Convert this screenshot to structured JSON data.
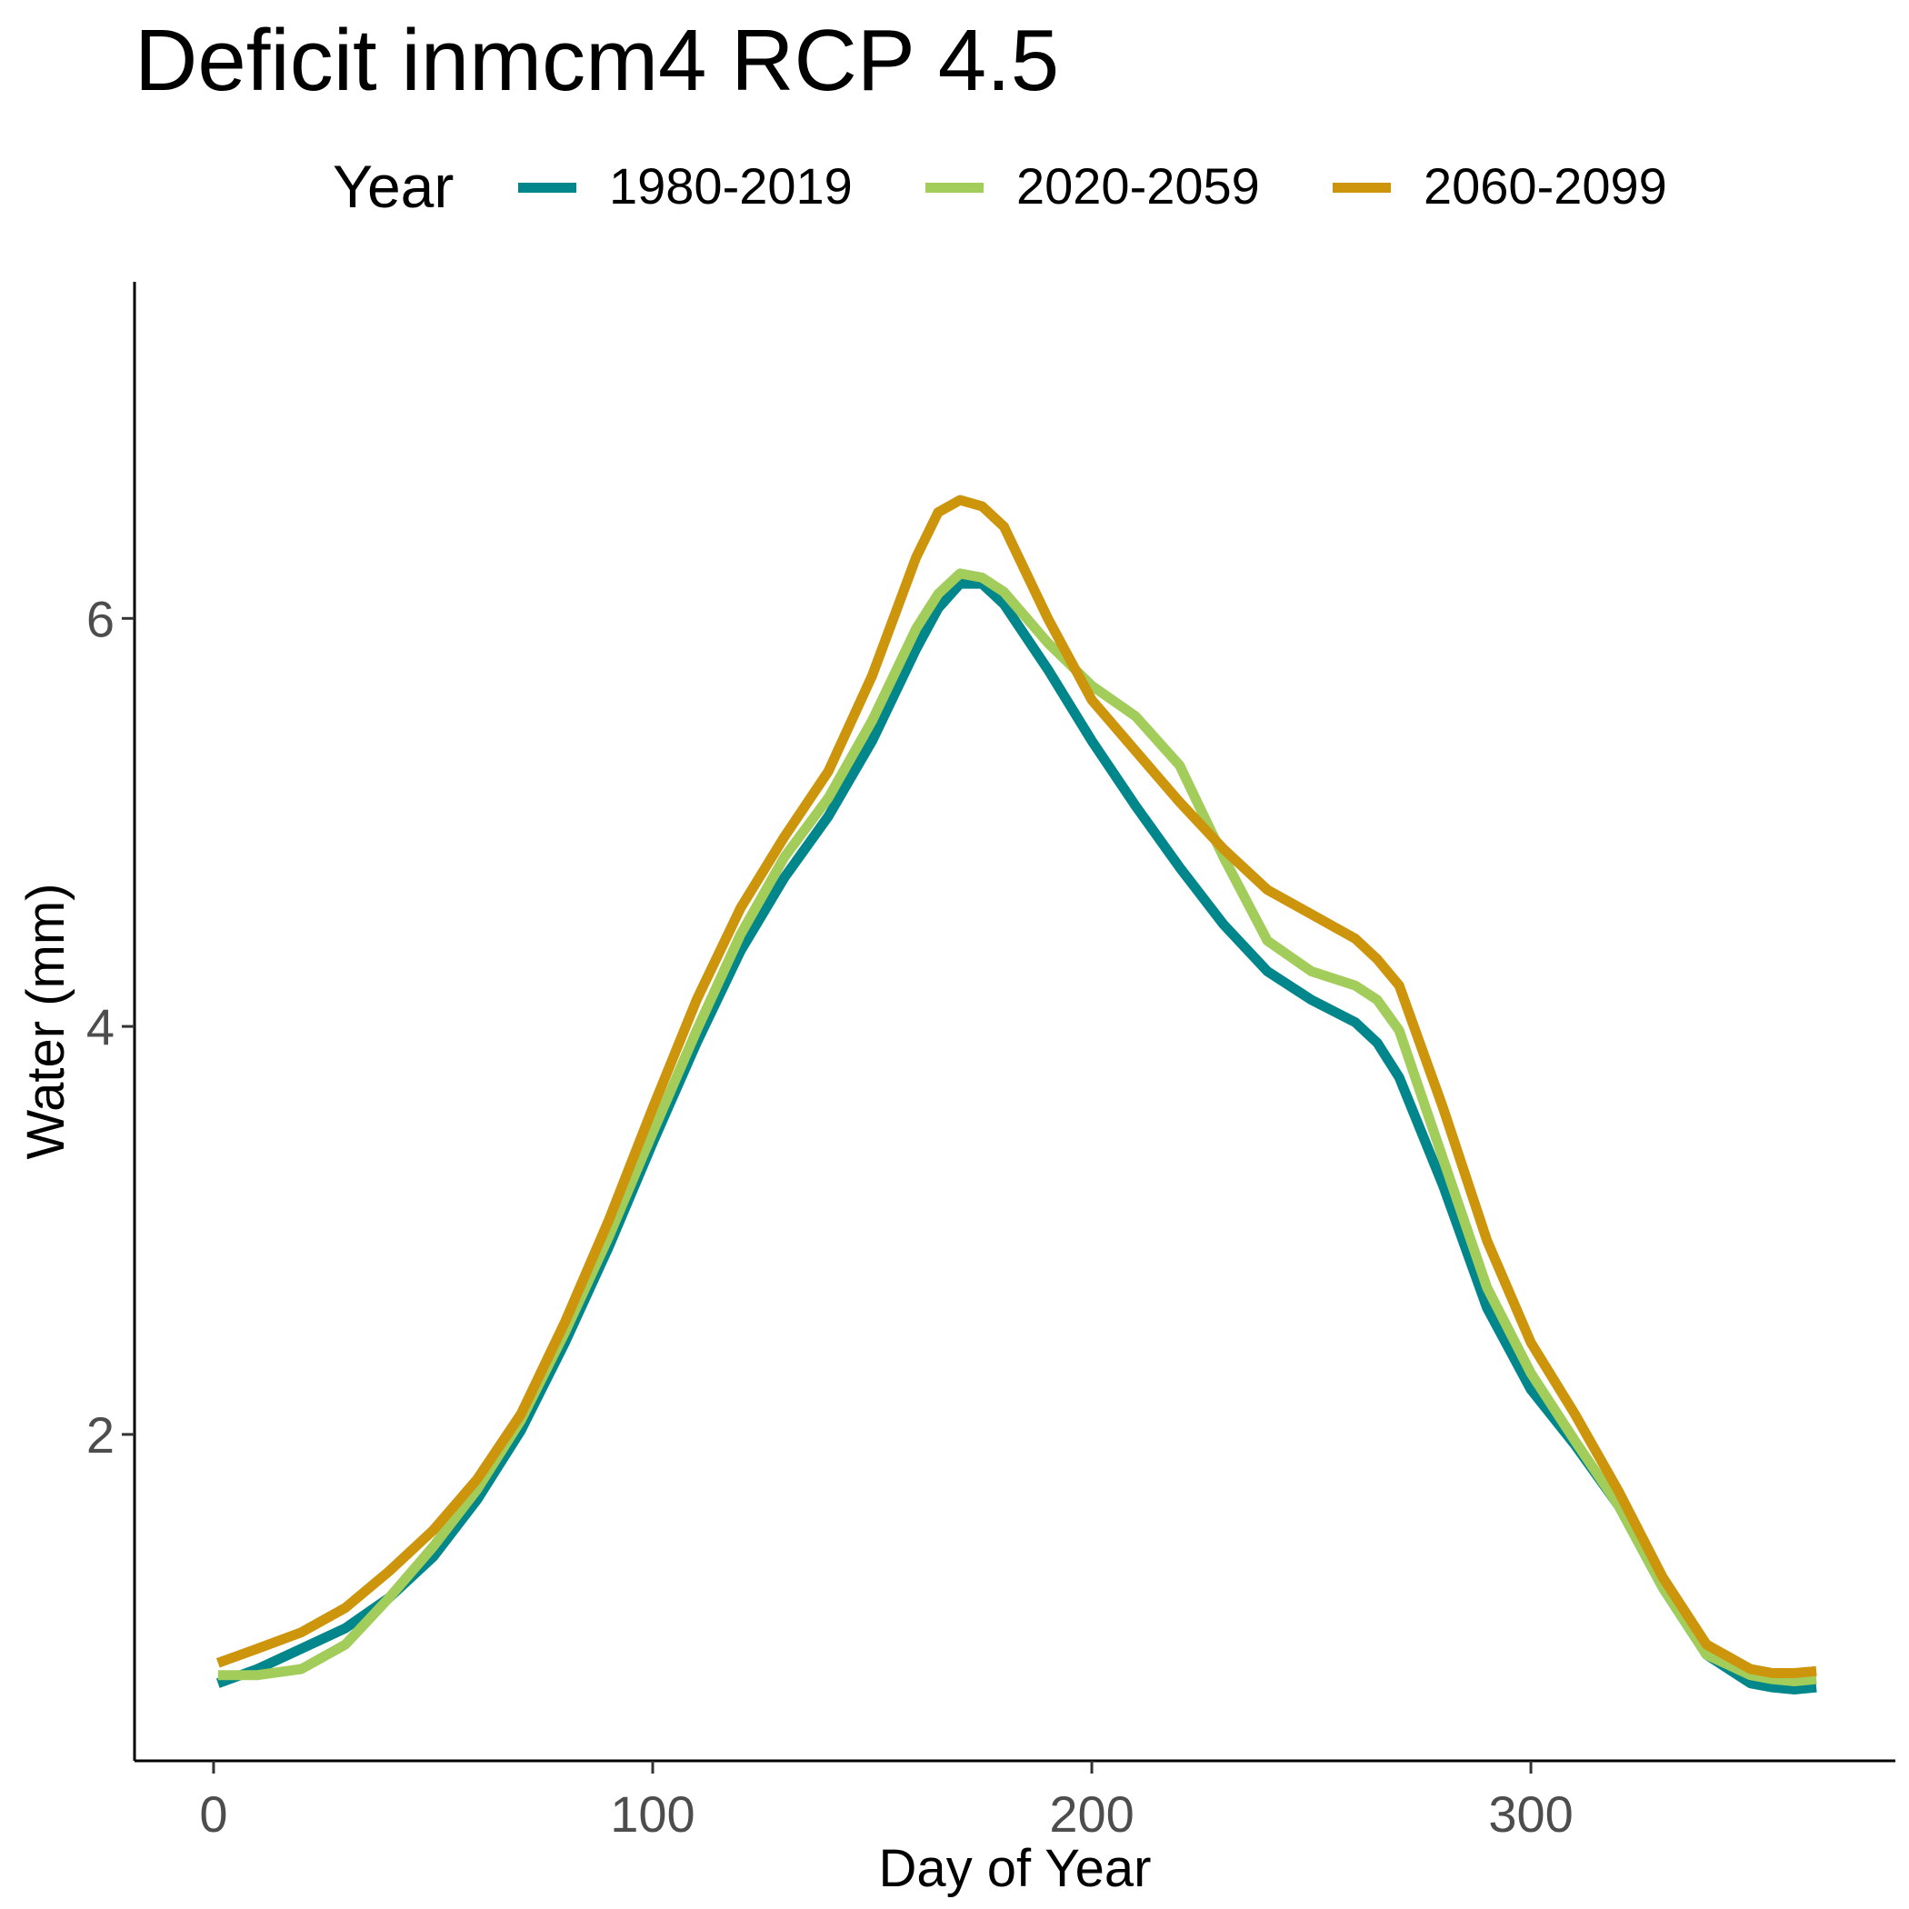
{
  "chart_data": {
    "type": "line",
    "title": "Deficit inmcm4 RCP 4.5",
    "xlabel": "Day of Year",
    "ylabel": "Water (mm)",
    "xlim": [
      -18,
      383
    ],
    "ylim": [
      0.4,
      7.65
    ],
    "xticks": [
      0,
      100,
      200,
      300
    ],
    "yticks": [
      2,
      4,
      6
    ],
    "grid": false,
    "legend": {
      "title": "Year",
      "position": "top"
    },
    "series": [
      {
        "name": "1980-2019",
        "color": "#00868B",
        "x": [
          1,
          10,
          20,
          30,
          40,
          50,
          60,
          70,
          80,
          90,
          100,
          110,
          120,
          130,
          140,
          150,
          160,
          165,
          170,
          175,
          180,
          190,
          200,
          210,
          220,
          230,
          240,
          250,
          260,
          265,
          270,
          280,
          290,
          300,
          310,
          320,
          330,
          340,
          350,
          355,
          360,
          365
        ],
        "y": [
          0.78,
          0.85,
          0.95,
          1.05,
          1.2,
          1.4,
          1.68,
          2.02,
          2.45,
          2.92,
          3.43,
          3.92,
          4.37,
          4.73,
          5.03,
          5.4,
          5.85,
          6.05,
          6.17,
          6.17,
          6.07,
          5.75,
          5.4,
          5.08,
          4.78,
          4.5,
          4.27,
          4.13,
          4.02,
          3.92,
          3.75,
          3.22,
          2.62,
          2.22,
          1.95,
          1.65,
          1.25,
          0.92,
          0.78,
          0.76,
          0.75,
          0.76
        ]
      },
      {
        "name": "2020-2059",
        "color": "#A2CD5A",
        "x": [
          1,
          10,
          20,
          30,
          40,
          50,
          60,
          70,
          80,
          90,
          100,
          110,
          120,
          130,
          140,
          150,
          160,
          165,
          170,
          175,
          180,
          190,
          200,
          210,
          220,
          230,
          240,
          250,
          260,
          265,
          270,
          280,
          290,
          300,
          310,
          320,
          330,
          340,
          350,
          355,
          360,
          365
        ],
        "y": [
          0.82,
          0.82,
          0.85,
          0.97,
          1.2,
          1.45,
          1.73,
          2.07,
          2.5,
          2.97,
          3.48,
          3.98,
          4.45,
          4.83,
          5.12,
          5.5,
          5.95,
          6.12,
          6.22,
          6.2,
          6.13,
          5.88,
          5.67,
          5.52,
          5.28,
          4.83,
          4.42,
          4.27,
          4.2,
          4.13,
          3.98,
          3.35,
          2.72,
          2.3,
          1.97,
          1.65,
          1.25,
          0.92,
          0.82,
          0.8,
          0.79,
          0.8
        ]
      },
      {
        "name": "2060-2099",
        "color": "#CD950C",
        "x": [
          1,
          10,
          20,
          30,
          40,
          50,
          60,
          70,
          80,
          90,
          100,
          110,
          120,
          130,
          140,
          150,
          160,
          165,
          170,
          175,
          180,
          190,
          200,
          210,
          220,
          230,
          240,
          250,
          260,
          265,
          270,
          280,
          290,
          300,
          310,
          320,
          330,
          340,
          350,
          355,
          360,
          365
        ],
        "y": [
          0.88,
          0.95,
          1.03,
          1.15,
          1.33,
          1.53,
          1.78,
          2.1,
          2.55,
          3.05,
          3.6,
          4.13,
          4.58,
          4.93,
          5.25,
          5.72,
          6.3,
          6.52,
          6.58,
          6.55,
          6.45,
          6.0,
          5.6,
          5.35,
          5.1,
          4.87,
          4.67,
          4.55,
          4.43,
          4.33,
          4.2,
          3.6,
          2.95,
          2.45,
          2.1,
          1.72,
          1.3,
          0.97,
          0.85,
          0.83,
          0.83,
          0.84
        ]
      }
    ]
  }
}
